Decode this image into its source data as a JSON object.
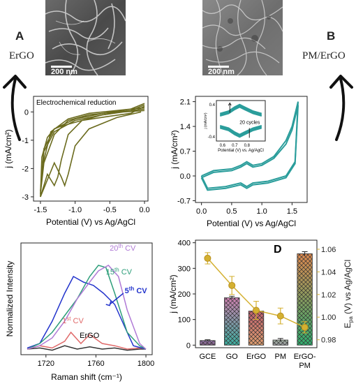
{
  "panel_a": {
    "letter": "A",
    "material": "ErGO",
    "scale_label": "200 nm"
  },
  "panel_b": {
    "letter": "B",
    "material": "PM/ErGO",
    "scale_label": "200 nm"
  },
  "chart_data": [
    {
      "id": "cv_a",
      "type": "line",
      "title": "Electrochemical reduction",
      "xlabel": "Potential (V) vs Ag/AgCl",
      "ylabel": "j (mA/cm²)",
      "xlim": [
        -1.6,
        0.05
      ],
      "ylim": [
        -3.15,
        0.55
      ],
      "xticks": [
        -1.5,
        -1.0,
        -0.5,
        0.0
      ],
      "xtick_labels": [
        "-1.5",
        "-1.0",
        "-0.5",
        "0.0"
      ],
      "yticks": [
        0,
        -1,
        -2,
        -3
      ],
      "ytick_labels": [
        "0",
        "-1",
        "-2",
        "-3"
      ],
      "color": "#6b6b1e",
      "series": [
        {
          "x": [
            0.0,
            -0.3,
            -0.6,
            -0.9,
            -1.1,
            -1.2,
            -1.25,
            -1.3,
            -1.4,
            -1.45,
            -1.5,
            -1.48,
            -1.4,
            -1.3,
            -1.2,
            -0.9,
            -0.5,
            -0.2,
            0.0
          ],
          "y": [
            0.05,
            0.0,
            -0.1,
            -0.3,
            -0.8,
            -1.7,
            -2.3,
            -2.6,
            -2.2,
            -2.6,
            -3.0,
            -1.6,
            -0.9,
            -0.6,
            -0.5,
            -0.3,
            -0.15,
            -0.05,
            0.2
          ]
        },
        {
          "x": [
            0.0,
            -0.4,
            -0.8,
            -1.1,
            -1.3,
            -1.45,
            -1.5,
            -1.45,
            -1.3,
            -1.0,
            -0.6,
            -0.2,
            0.0
          ],
          "y": [
            0.1,
            0.0,
            -0.1,
            -0.3,
            -0.8,
            -1.8,
            -2.9,
            -1.4,
            -0.7,
            -0.3,
            -0.1,
            0.05,
            0.25
          ]
        },
        {
          "x": [
            0.0,
            -0.4,
            -0.8,
            -1.1,
            -1.35,
            -1.45,
            -1.5,
            -1.45,
            -1.3,
            -1.0,
            -0.6,
            -0.2,
            0.0
          ],
          "y": [
            0.15,
            0.05,
            -0.05,
            -0.25,
            -0.7,
            -1.7,
            -2.8,
            -1.3,
            -0.6,
            -0.25,
            -0.05,
            0.1,
            0.3
          ]
        },
        {
          "x": [
            -0.05,
            -0.4,
            -0.8,
            -1.0,
            -1.1,
            -1.15,
            -1.2,
            -1.3,
            -1.4,
            -1.5
          ],
          "y": [
            0.0,
            -0.2,
            -0.6,
            -1.2,
            -2.2,
            -2.6,
            -2.3,
            -1.8,
            -2.4,
            -3.0
          ]
        }
      ]
    },
    {
      "id": "cv_b",
      "type": "line",
      "xlabel": "Potential (V) vs Ag/AgCl",
      "ylabel": "j (mA/cm²)",
      "xlim": [
        -0.1,
        1.75
      ],
      "ylim": [
        -0.75,
        2.25
      ],
      "xticks": [
        0.0,
        0.5,
        1.0,
        1.5
      ],
      "xtick_labels": [
        "0.0",
        "0.5",
        "1.0",
        "1.5"
      ],
      "yticks": [
        2.1,
        1.4,
        0.7,
        0.0,
        -0.7
      ],
      "ytick_labels": [
        "2.1",
        "1.4",
        "0.7",
        "0.0",
        "-0.7"
      ],
      "color": "#2a9d9b",
      "series": [
        {
          "x": [
            0.0,
            0.2,
            0.5,
            0.65,
            0.75,
            0.85,
            1.0,
            1.2,
            1.4,
            1.5,
            1.6,
            1.55,
            1.4,
            1.1,
            0.85,
            0.75,
            0.65,
            0.4,
            0.1,
            0.0
          ],
          "y": [
            0.0,
            0.15,
            0.2,
            0.3,
            0.4,
            0.3,
            0.35,
            0.55,
            1.0,
            1.4,
            2.1,
            0.4,
            0.0,
            -0.15,
            -0.2,
            -0.3,
            -0.2,
            -0.3,
            -0.35,
            0.0
          ]
        },
        {
          "x": [
            0.0,
            0.2,
            0.5,
            0.65,
            0.75,
            0.85,
            1.0,
            1.2,
            1.4,
            1.5,
            1.6,
            1.55,
            1.4,
            1.1,
            0.85,
            0.75,
            0.65,
            0.4,
            0.1,
            0.0
          ],
          "y": [
            -0.05,
            0.1,
            0.15,
            0.25,
            0.35,
            0.25,
            0.3,
            0.5,
            0.9,
            1.3,
            2.0,
            0.35,
            -0.05,
            -0.2,
            -0.25,
            -0.35,
            -0.25,
            -0.35,
            -0.4,
            -0.05
          ]
        }
      ],
      "inset": {
        "xlabel": "Potential (V) vs. Ag/AgCl",
        "ylabel": "j (mA/cm²)",
        "annotation": "20 cycles",
        "xlim": [
          0.55,
          0.95
        ],
        "ylim": [
          -0.5,
          0.5
        ],
        "xticks": [
          0.6,
          0.7,
          0.8
        ],
        "xtick_labels": [
          "0.6",
          "0.7",
          "0.8"
        ],
        "yticks": [
          0.4,
          -0.4
        ],
        "ytick_labels": [
          "0.4",
          "-0.4"
        ]
      }
    },
    {
      "id": "raman_c",
      "type": "line",
      "xlabel": "Raman shift (cm⁻¹)",
      "ylabel": "Normalized Intensity",
      "xlim": [
        1700,
        1805
      ],
      "ylim": [
        0,
        1
      ],
      "xticks": [
        1720,
        1760,
        1800
      ],
      "xtick_labels": [
        "1720",
        "1760",
        "1800"
      ],
      "series": [
        {
          "name": "ErGO",
          "color": "#333333",
          "x": [
            1705,
            1715,
            1725,
            1735,
            1745,
            1755,
            1765,
            1775,
            1785,
            1795,
            1800
          ],
          "y": [
            0.05,
            0.06,
            0.04,
            0.08,
            0.05,
            0.07,
            0.05,
            0.06,
            0.04,
            0.05,
            0.05
          ]
        },
        {
          "name": "1st CV",
          "label": "1",
          "label_sup": "st",
          "label_tail": " CV",
          "color": "#e06a6a",
          "x": [
            1705,
            1715,
            1725,
            1735,
            1740,
            1748,
            1755,
            1765,
            1775,
            1785,
            1795,
            1800
          ],
          "y": [
            0.05,
            0.08,
            0.06,
            0.12,
            0.2,
            0.1,
            0.18,
            0.1,
            0.08,
            0.05,
            0.06,
            0.05
          ]
        },
        {
          "name": "5th CV",
          "label": "5",
          "label_sup": "th",
          "label_tail": " CV",
          "color": "#2233cc",
          "x": [
            1705,
            1715,
            1725,
            1735,
            1742,
            1750,
            1758,
            1766,
            1775,
            1785,
            1790,
            1800
          ],
          "y": [
            0.06,
            0.1,
            0.3,
            0.55,
            0.7,
            0.65,
            0.62,
            0.55,
            0.45,
            0.2,
            0.08,
            0.05
          ]
        },
        {
          "name": "15th CV",
          "label": "15",
          "label_sup": "th",
          "label_tail": " CV",
          "color": "#2e9e7a",
          "x": [
            1705,
            1715,
            1725,
            1735,
            1745,
            1755,
            1762,
            1768,
            1775,
            1785,
            1795,
            1800
          ],
          "y": [
            0.05,
            0.1,
            0.2,
            0.35,
            0.5,
            0.7,
            0.8,
            0.78,
            0.55,
            0.2,
            0.08,
            0.05
          ]
        },
        {
          "name": "20th CV",
          "label": "20",
          "label_sup": "th",
          "label_tail": " CV",
          "color": "#b07ad6",
          "x": [
            1705,
            1715,
            1725,
            1735,
            1745,
            1755,
            1762,
            1770,
            1778,
            1785,
            1795,
            1800
          ],
          "y": [
            0.05,
            0.08,
            0.15,
            0.3,
            0.5,
            0.65,
            0.75,
            0.8,
            0.7,
            0.4,
            0.1,
            0.05
          ]
        }
      ]
    },
    {
      "id": "bar_d",
      "type": "bar",
      "letter": "D",
      "categories": [
        "GCE",
        "GO",
        "ErGO",
        "PM",
        "ErGO-PM"
      ],
      "category_lines": [
        [
          "GCE"
        ],
        [
          "GO"
        ],
        [
          "ErGO"
        ],
        [
          "PM"
        ],
        [
          "ErGO-",
          "PM"
        ]
      ],
      "values": [
        18,
        185,
        133,
        20,
        357
      ],
      "errors": [
        3,
        6,
        8,
        6,
        8
      ],
      "ylabel": "j (mA/cm²)",
      "ylim": [
        -10,
        410
      ],
      "yticks": [
        0,
        100,
        200,
        300,
        400
      ],
      "bar_colors": [
        [
          "#7a5a7a",
          "#9a7ab0"
        ],
        [
          "#3ab0a0",
          "#d080b0"
        ],
        [
          "#e0a070",
          "#c06070"
        ],
        [
          "#9a9aa0",
          "#a0b0a0"
        ],
        [
          "#30b070",
          "#e08a50"
        ]
      ],
      "right_axis": {
        "label": "E_pa (V) vs Ag/AgCl",
        "label_main": "E",
        "label_sub": "pa",
        "label_tail": " (V) vs Ag/AgCl",
        "ylim": [
          0.973,
          1.068
        ],
        "yticks": [
          0.98,
          1.0,
          1.02,
          1.04,
          1.06
        ],
        "ytick_labels": [
          "0.98",
          "1.00",
          "1.02",
          "1.04",
          "1.06"
        ],
        "color": "#d4b030",
        "values": [
          1.052,
          1.028,
          1.006,
          1.001,
          0.991
        ],
        "errors": [
          0.005,
          0.008,
          0.008,
          0.007,
          0.005
        ]
      }
    }
  ]
}
